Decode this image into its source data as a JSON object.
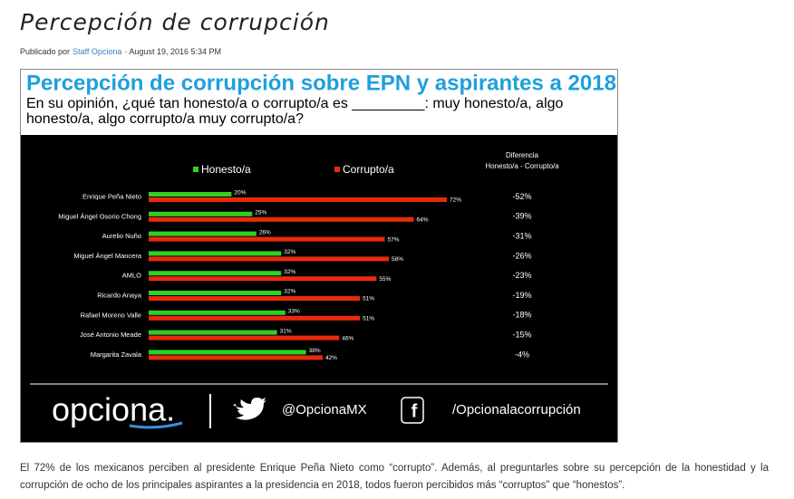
{
  "header": {
    "title": "Percepción de corrupción"
  },
  "byline": {
    "prefix": "Publicado por",
    "author": "Staff Opciona",
    "date": "· August 19, 2016 5:34 PM"
  },
  "image": {
    "title": "Percepción de corrupción sobre EPN y aspirantes a 2018",
    "question": [
      "En su opinión, ¿qué tan honesto/a o corrupto/a es _________: muy honesto/a, algo",
      "honesto/a, algo corrupto/a muy corrupto/a?"
    ],
    "footer": {
      "logo": "opciona.",
      "twitter": "@OpcionaMX",
      "facebook": "/Opcionalacorrupción"
    }
  },
  "chart_data": {
    "type": "bar",
    "orientation": "horizontal",
    "categories": [
      "Enrique Peña Nieto",
      "Miguel Ángel Osorio Chong",
      "Aurelio Nuño",
      "Miguel Ángel Mancera",
      "AMLO",
      "Ricardo Anaya",
      "Rafael Moreno Valle",
      "José Antonio Meade",
      "Margarita Zavala"
    ],
    "series": [
      {
        "name": "Honesto/a",
        "color": "#2ed11f",
        "values": [
          20,
          25,
          26,
          32,
          32,
          32,
          33,
          31,
          38
        ],
        "value_labels": [
          "20%",
          "25%",
          "26%",
          "32%",
          "32%",
          "32%",
          "33%",
          "31%",
          "38%"
        ]
      },
      {
        "name": "Corrupto/a",
        "color": "#ea2a0c",
        "values": [
          72,
          64,
          57,
          58,
          55,
          51,
          51,
          46,
          42
        ],
        "value_labels": [
          "72%",
          "64%",
          "57%",
          "58%",
          "55%",
          "51%",
          "51%",
          "46%",
          "42%"
        ]
      }
    ],
    "difference_header": [
      "Diferencia",
      "Honesto/a - Corrupto/a"
    ],
    "difference": {
      "values": [
        -52,
        -39,
        -31,
        -26,
        -23,
        -19,
        -18,
        -15,
        -4
      ],
      "value_labels": [
        "-52%",
        "-39%",
        "-31%",
        "-26%",
        "-23%",
        "-19%",
        "-18%",
        "-15%",
        "-4%"
      ]
    }
  },
  "body": {
    "paragraph": "El 72% de los mexicanos perciben al presidente Enrique Peña Nieto como “corrupto”. Además, al preguntarles sobre su percepción de la honestidad y la corrupción de ocho de los principales aspirantes a la presidencia en 2018, todos fueron percibidos más “corruptos” que “honestos”."
  }
}
